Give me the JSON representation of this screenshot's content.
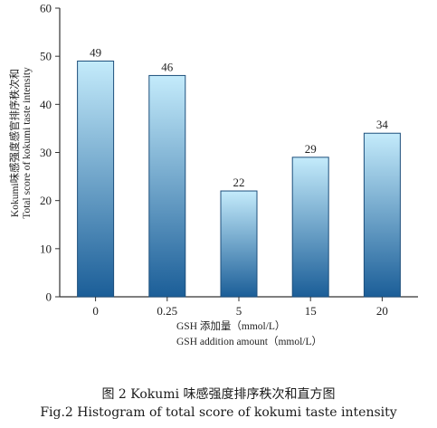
{
  "chart_data": {
    "type": "bar",
    "categories": [
      "0",
      "0.25",
      "5",
      "15",
      "20"
    ],
    "values": [
      49,
      46,
      22,
      29,
      34
    ],
    "data_labels": [
      "49",
      "46",
      "22",
      "29",
      "34"
    ],
    "ylim": [
      0,
      60
    ],
    "yticks": [
      "0",
      "10",
      "20",
      "30",
      "40",
      "50",
      "60"
    ],
    "ylabel_line1": "Kokumi味感强度感官排序秩次和",
    "ylabel_line2": "Total score of kokumi taste intensity",
    "xlabel_line1": "GSH 添加量（mmol/L）",
    "xlabel_line2": "GSH addition amount（mmol/L）",
    "grid": false,
    "bar_gradient": {
      "top": "#c4ebfb",
      "bottom": "#1b5e98"
    },
    "axis_color": "#333333"
  },
  "caption": {
    "zh": "图 2 Kokumi  味感强度排序秩次和直方图",
    "en": "Fig.2 Histogram of total score of kokumi taste intensity"
  }
}
